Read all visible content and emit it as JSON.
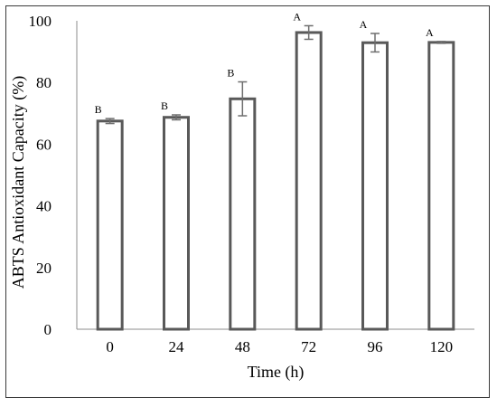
{
  "chart_data": {
    "type": "bar",
    "categories": [
      "0",
      "24",
      "48",
      "72",
      "96",
      "120"
    ],
    "values": [
      67.5,
      68.7,
      74.7,
      96.2,
      92.9,
      93.0
    ],
    "errors": [
      0.8,
      0.8,
      5.5,
      2.2,
      3.0,
      0.3
    ],
    "significance": [
      "B",
      "B",
      "B",
      "A",
      "A",
      "A"
    ],
    "xlabel": "Time (h)",
    "ylabel": "ABTS Antioxidant Capacity (%)",
    "ylim": [
      0,
      100
    ],
    "yticks": [
      0,
      20,
      40,
      60,
      80,
      100
    ],
    "grid": false,
    "bar_fill": "#ffffff",
    "bar_stroke": "#595959",
    "errorbar_color": "#6e6e6e"
  }
}
